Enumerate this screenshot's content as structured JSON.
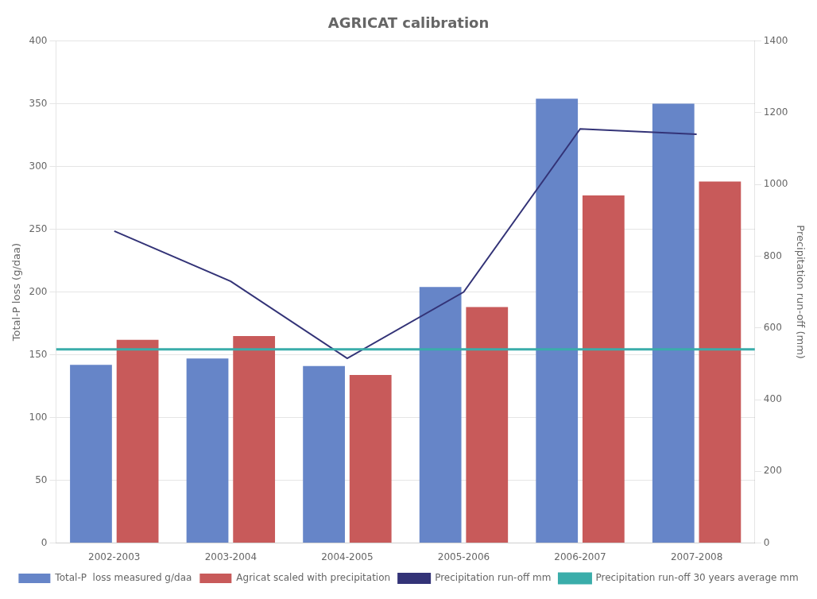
{
  "chart_data": {
    "type": "bar",
    "title": "AGRICAT calibration",
    "categories": [
      "2002-2003",
      "2003-2004",
      "2004-2005",
      "2005-2006",
      "2006-2007",
      "2007-2008"
    ],
    "series": [
      {
        "name": "Total-P  loss measured g/daa",
        "color": "#6685C8",
        "values": [
          142,
          147,
          141,
          204,
          354,
          350
        ]
      },
      {
        "name": "Agricat scaled with precipitation",
        "color": "#C85A5A",
        "values": [
          162,
          165,
          134,
          188,
          277,
          288
        ]
      },
      {
        "name": "Precipitation run-off mm",
        "type": "line",
        "color": "#333377",
        "axis": "y2",
        "values": [
          870,
          730,
          515,
          700,
          1155,
          1140
        ]
      },
      {
        "name": "Precipitation run-off 30 years average mm",
        "type": "hline",
        "color": "#3AADAA",
        "axis": "y2",
        "value": 540
      }
    ],
    "y_label": "Total-P loss (g/daa)",
    "y2_label": "Precipitation run-off (mm)",
    "ylim": [
      0,
      400
    ],
    "yticks": [
      0,
      50,
      100,
      150,
      200,
      250,
      300,
      350,
      400
    ],
    "y2lim": [
      0,
      1400
    ],
    "y2ticks": [
      0,
      200,
      400,
      600,
      800,
      1000,
      1200,
      1400
    ],
    "grid": true,
    "legend": "bottom"
  }
}
